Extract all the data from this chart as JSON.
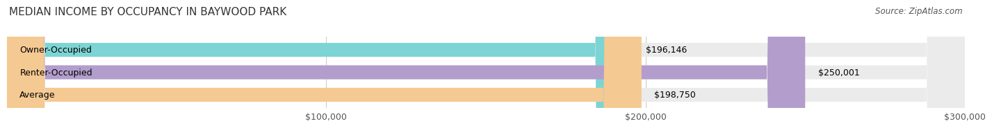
{
  "title": "MEDIAN INCOME BY OCCUPANCY IN BAYWOOD PARK",
  "source": "Source: ZipAtlas.com",
  "categories": [
    "Owner-Occupied",
    "Renter-Occupied",
    "Average"
  ],
  "values": [
    196146,
    250001,
    198750
  ],
  "bar_colors": [
    "#7dd4d4",
    "#b39dcc",
    "#f5c992"
  ],
  "bar_bg_color": "#ebebeb",
  "value_labels": [
    "$196,146",
    "$250,001",
    "$198,750"
  ],
  "xlim": [
    0,
    300000
  ],
  "xticks": [
    100000,
    200000,
    300000
  ],
  "xtick_labels": [
    "$100,000",
    "$200,000",
    "$300,000"
  ],
  "title_fontsize": 11,
  "source_fontsize": 8.5,
  "label_fontsize": 9,
  "value_fontsize": 9,
  "tick_fontsize": 9,
  "bar_height": 0.62,
  "background_color": "#ffffff"
}
